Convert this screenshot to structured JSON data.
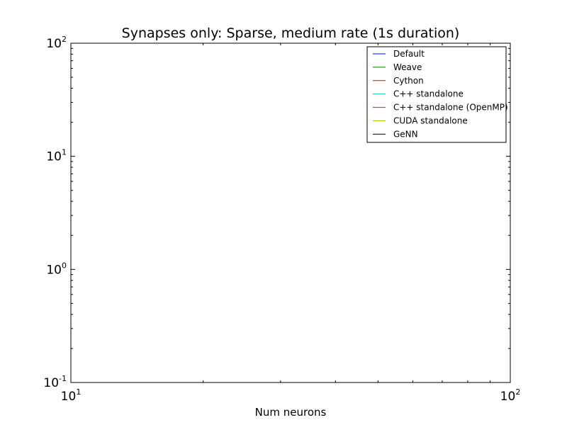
{
  "chart_data": {
    "type": "line",
    "title": "Synapses only: Sparse, medium rate (1s duration)",
    "xlabel": "Num neurons",
    "ylabel": "",
    "xscale": "log",
    "yscale": "log",
    "xlim": [
      10,
      100
    ],
    "ylim": [
      0.1,
      100
    ],
    "x_ticks": [
      {
        "value": 10,
        "base": "10",
        "exp": "1"
      },
      {
        "value": 100,
        "base": "10",
        "exp": "2"
      }
    ],
    "y_ticks": [
      {
        "value": 0.1,
        "base": "10",
        "exp": "-1"
      },
      {
        "value": 1,
        "base": "10",
        "exp": "0"
      },
      {
        "value": 10,
        "base": "10",
        "exp": "1"
      },
      {
        "value": 100,
        "base": "10",
        "exp": "2"
      }
    ],
    "grid": false,
    "legend_position": "top-right",
    "series": [
      {
        "name": "Default",
        "color": "#0000ff",
        "values": []
      },
      {
        "name": "Weave",
        "color": "#008000",
        "values": []
      },
      {
        "name": "Cython",
        "color": "#ff0000",
        "values": []
      },
      {
        "name": "C++ standalone",
        "color": "#00bfbf",
        "values": []
      },
      {
        "name": "C++ standalone (OpenMP)",
        "color": "#bf00bf",
        "values": []
      },
      {
        "name": "CUDA standalone",
        "color": "#bfbf00",
        "values": []
      },
      {
        "name": "GeNN",
        "color": "#000000",
        "values": []
      }
    ]
  }
}
